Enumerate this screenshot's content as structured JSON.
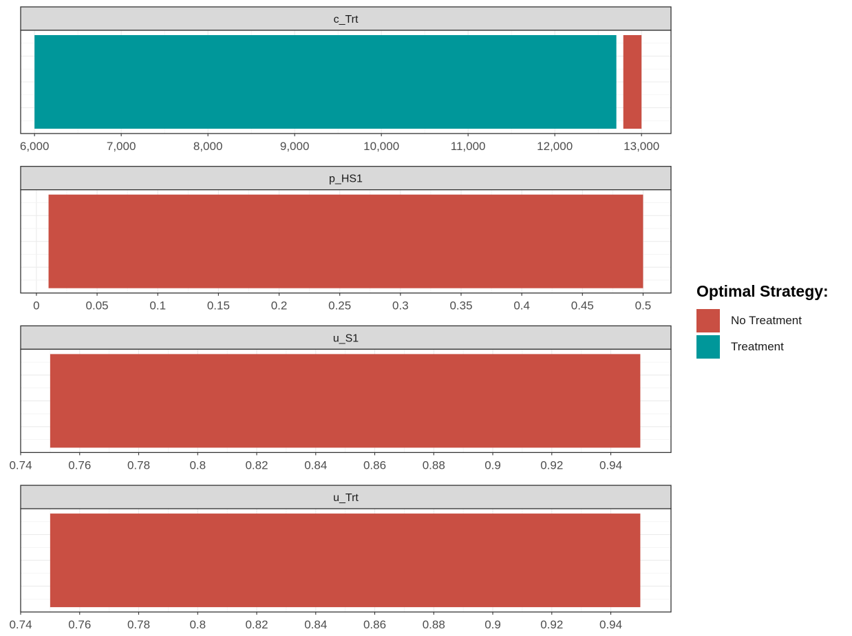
{
  "chart_data": {
    "type": "bar",
    "orientation": "horizontal",
    "facet_layout": "vertical",
    "grid": true,
    "legend": {
      "title": "Optimal Strategy:",
      "position": "right",
      "entries": [
        {
          "label": "No Treatment",
          "color": "#C94F43"
        },
        {
          "label": "Treatment",
          "color": "#00979A"
        }
      ]
    },
    "panels": [
      {
        "title": "c_Trt",
        "xlim": [
          5840,
          13340
        ],
        "ticks": [
          6000,
          7000,
          8000,
          9000,
          10000,
          11000,
          12000,
          13000
        ],
        "tick_labels": [
          "6,000",
          "7,000",
          "8,000",
          "9,000",
          "10,000",
          "11,000",
          "12,000",
          "13,000"
        ],
        "segments": [
          {
            "strategy": "Treatment",
            "from": 6000,
            "to": 12710
          },
          {
            "strategy": "No Treatment",
            "from": 12790,
            "to": 13000
          }
        ]
      },
      {
        "title": "p_HS1",
        "xlim": [
          -0.013,
          0.523
        ],
        "ticks": [
          0,
          0.05,
          0.1,
          0.15,
          0.2,
          0.25,
          0.3,
          0.35,
          0.4,
          0.45,
          0.5
        ],
        "tick_labels": [
          "0",
          "0.05",
          "0.1",
          "0.15",
          "0.2",
          "0.25",
          "0.3",
          "0.35",
          "0.4",
          "0.45",
          "0.5"
        ],
        "segments": [
          {
            "strategy": "No Treatment",
            "from": 0.01,
            "to": 0.5
          }
        ]
      },
      {
        "title": "u_S1",
        "xlim": [
          0.74,
          0.9604
        ],
        "ticks": [
          0.74,
          0.76,
          0.78,
          0.8,
          0.82,
          0.84,
          0.86,
          0.88,
          0.9,
          0.92,
          0.94
        ],
        "tick_labels": [
          "0.74",
          "0.76",
          "0.78",
          "0.8",
          "0.82",
          "0.84",
          "0.86",
          "0.88",
          "0.9",
          "0.92",
          "0.94"
        ],
        "segments": [
          {
            "strategy": "No Treatment",
            "from": 0.75,
            "to": 0.95
          }
        ]
      },
      {
        "title": "u_Trt",
        "xlim": [
          0.74,
          0.9604
        ],
        "ticks": [
          0.74,
          0.76,
          0.78,
          0.8,
          0.82,
          0.84,
          0.86,
          0.88,
          0.9,
          0.92,
          0.94
        ],
        "tick_labels": [
          "0.74",
          "0.76",
          "0.78",
          "0.8",
          "0.82",
          "0.84",
          "0.86",
          "0.88",
          "0.9",
          "0.92",
          "0.94"
        ],
        "segments": [
          {
            "strategy": "No Treatment",
            "from": 0.75,
            "to": 0.95
          }
        ]
      }
    ]
  }
}
